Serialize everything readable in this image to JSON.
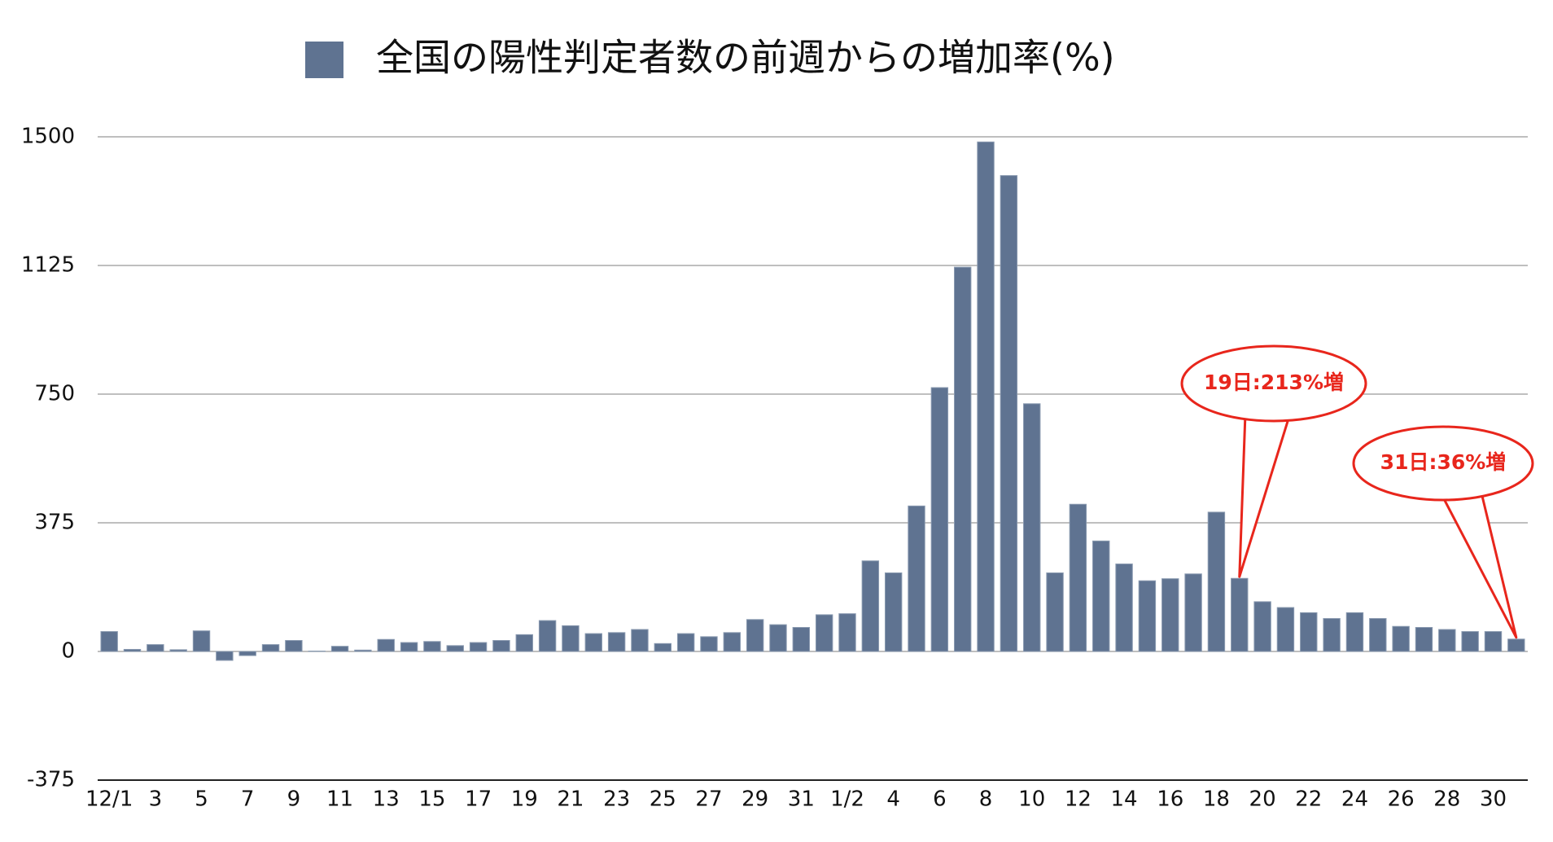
{
  "chart_data": {
    "type": "bar",
    "series": [
      {
        "name": "全国の陽性判定者数の前週からの増加率(%)",
        "color": "#5f7391",
        "values": [
          58,
          6,
          20,
          5,
          60,
          -26,
          -12,
          20,
          32,
          1,
          15,
          4,
          35,
          26,
          29,
          17,
          26,
          32,
          49,
          90,
          75,
          52,
          55,
          64,
          23,
          52,
          43,
          55,
          93,
          78,
          70,
          107,
          110,
          264,
          229,
          424,
          769,
          1120,
          1485,
          1387,
          722,
          229,
          429,
          322,
          255,
          206,
          212,
          226,
          406,
          213,
          145,
          128,
          113,
          96,
          113,
          96,
          73,
          70,
          64,
          58,
          58,
          36
        ]
      }
    ],
    "categories": [
      "12/1",
      null,
      "3",
      null,
      "5",
      null,
      "7",
      null,
      "9",
      null,
      "11",
      null,
      "13",
      null,
      "15",
      null,
      "17",
      null,
      "19",
      null,
      "21",
      null,
      "23",
      null,
      "25",
      null,
      "27",
      null,
      "29",
      null,
      "31",
      null,
      "1/2",
      null,
      "4",
      null,
      "6",
      null,
      "8",
      null,
      "10",
      null,
      "12",
      null,
      "14",
      null,
      "16",
      null,
      "18",
      null,
      "20",
      null,
      "22",
      null,
      "24",
      null,
      "26",
      null,
      "28",
      null,
      "30",
      null
    ],
    "ylim": [
      -375,
      1500
    ],
    "yticks": [
      -375,
      0,
      375,
      750,
      1125,
      1500
    ],
    "grid": true,
    "annotations": [
      "19日:213%増",
      "31日:36%増"
    ]
  }
}
